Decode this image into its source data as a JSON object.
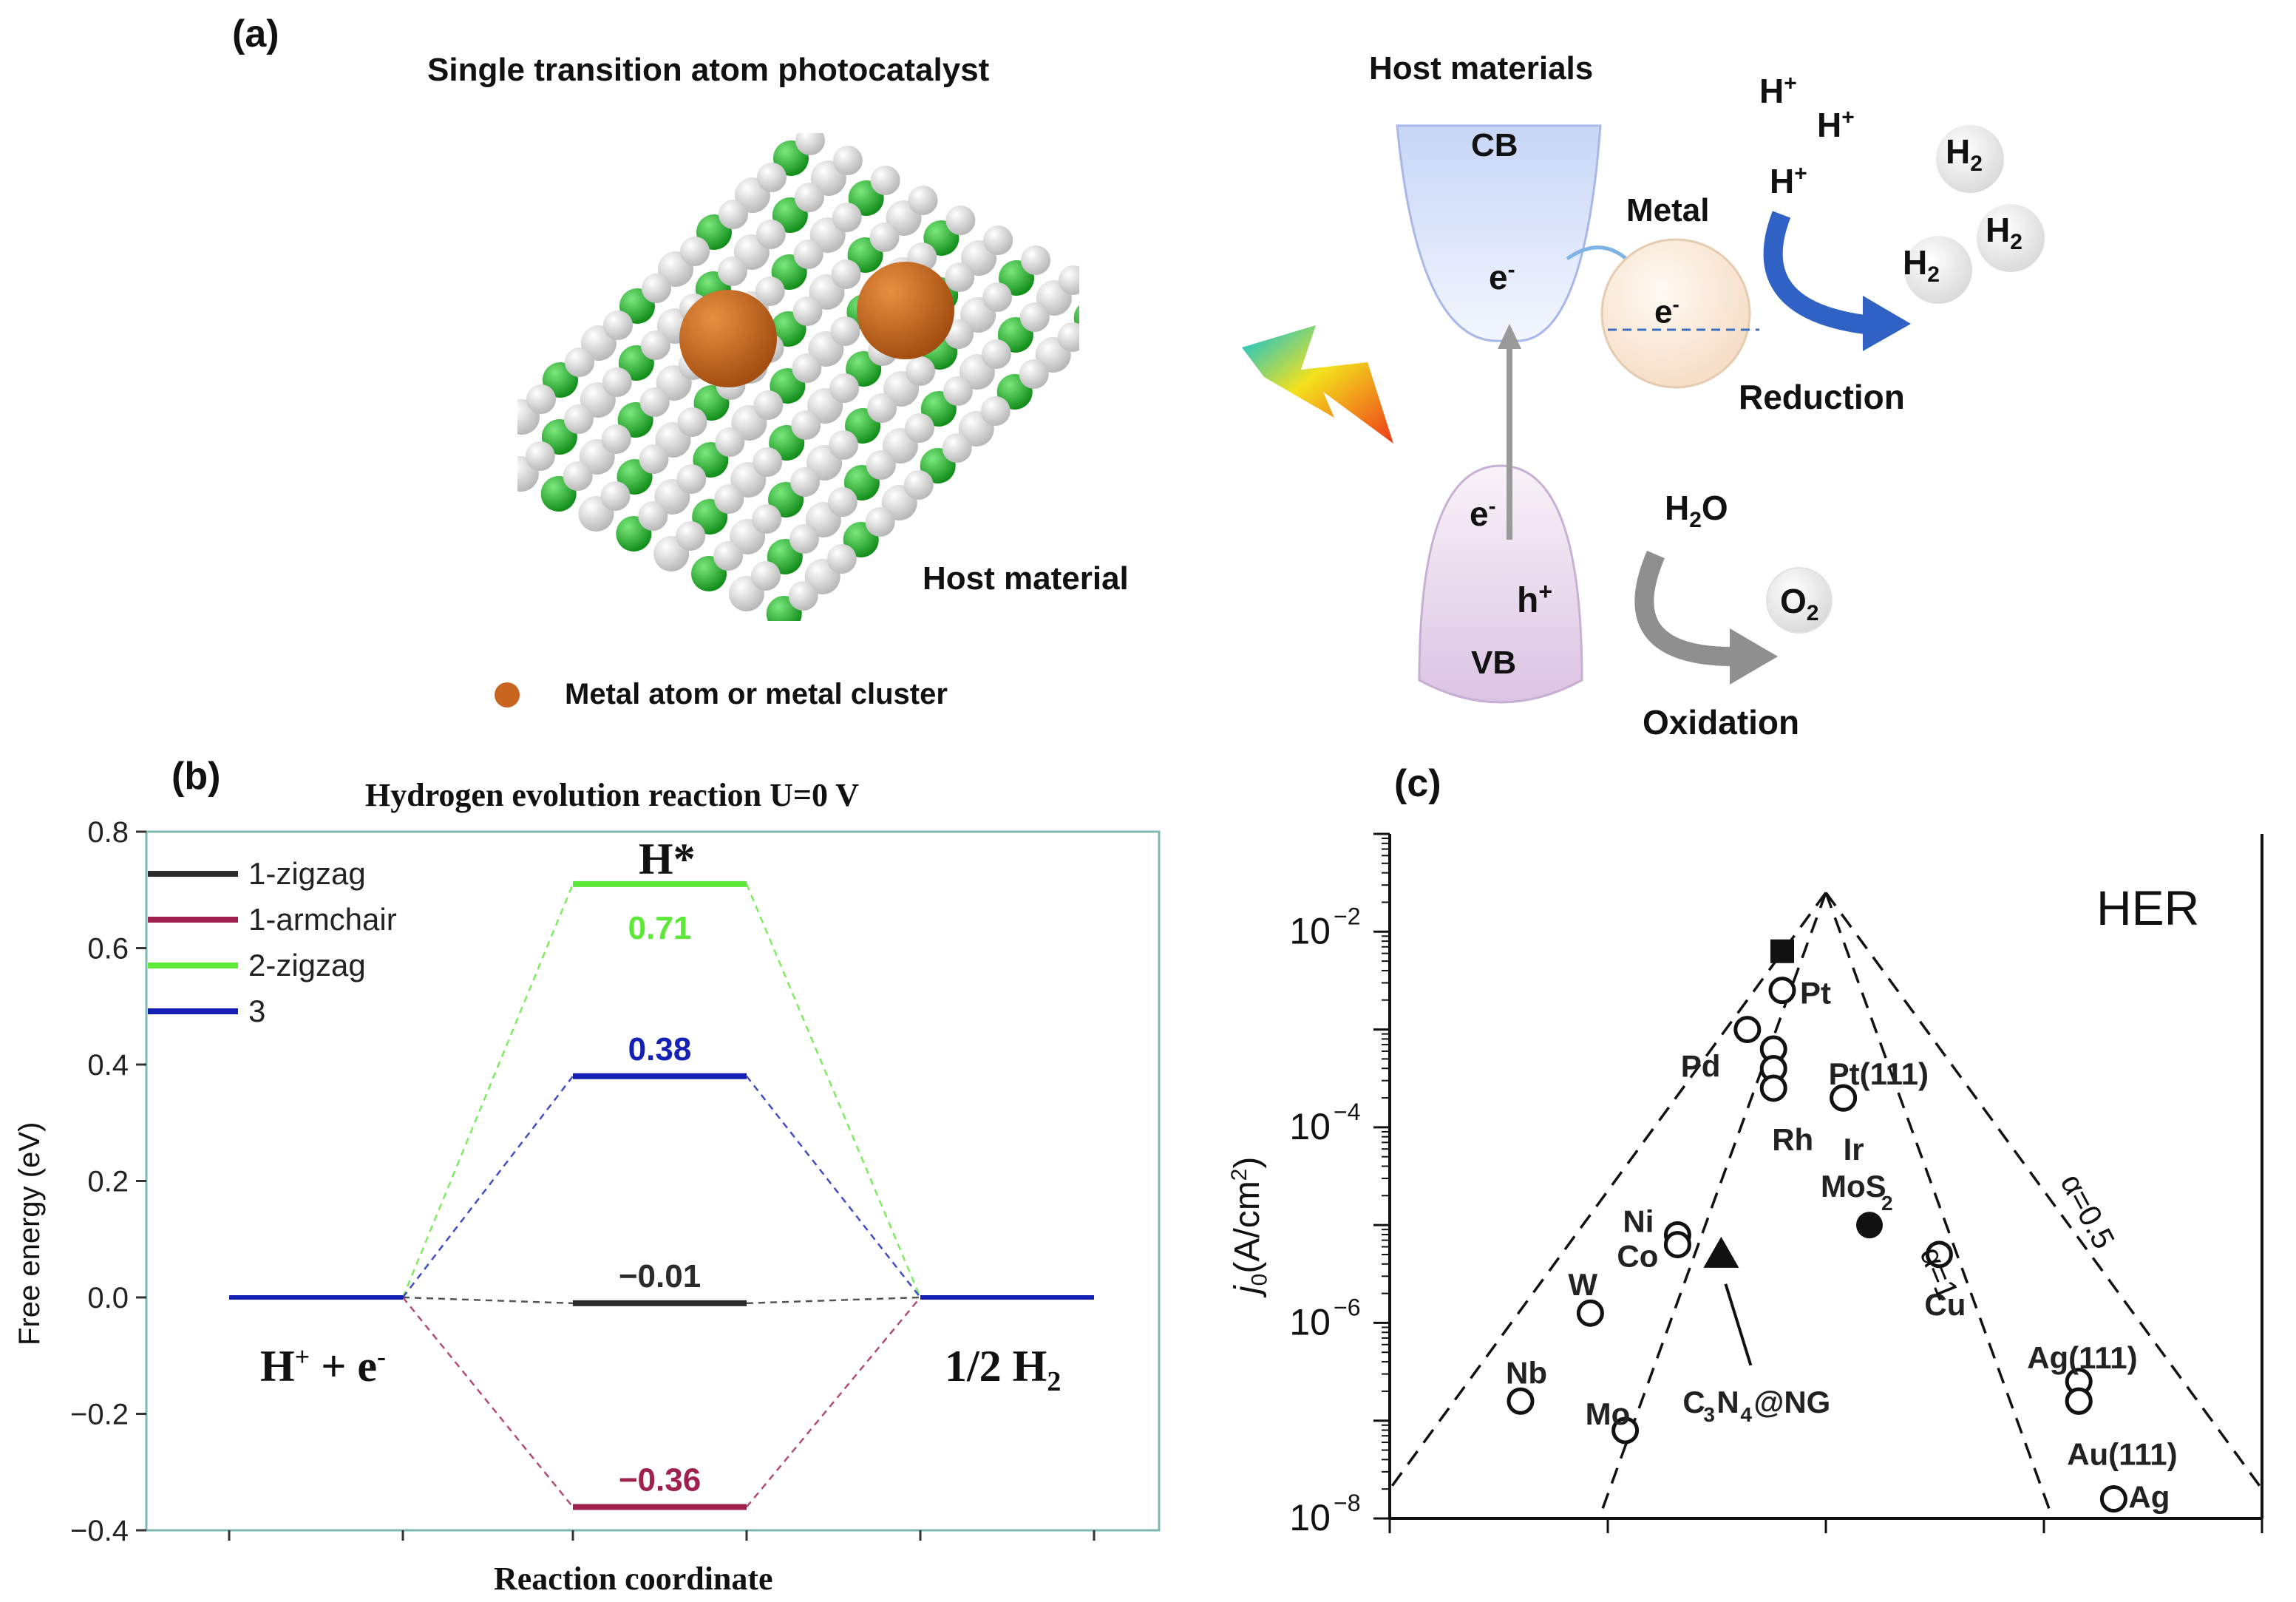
{
  "panel_a": {
    "letter": "(a)",
    "title": "Single transition atom photocatalyst",
    "host_material_label": "Host material",
    "legend_text": "Metal atom or metal cluster",
    "host_materials_title": "Host materials",
    "cb": "CB",
    "vb": "VB",
    "metal": "Metal",
    "electron": "e",
    "minus": "-",
    "hole": "h",
    "plus": "+",
    "h_symbol": "H",
    "h2": "H",
    "sub2": "2",
    "h2o": "H",
    "h2o_o": "O",
    "o2": "O",
    "reduction": "Reduction",
    "oxidation": "Oxidation",
    "colors": {
      "metal_atom": "#c8651f",
      "green_atom": "#22b02a",
      "white_atom": "#e4e4e4",
      "cb_fill": "#dfe8fb",
      "vb_fill": "#efe3f2",
      "reduction_arrow": "#2f62c4",
      "oxidation_arrow": "#909090"
    }
  },
  "chart_data": [
    {
      "type": "line",
      "panel": "(b)",
      "title": "Hydrogen evolution reaction U=0 V",
      "xlabel": "Reaction coordinate",
      "ylabel": "Free energy (eV)",
      "ylim": [
        -0.4,
        0.8
      ],
      "yticks": [
        "0.8",
        "0.6",
        "0.4",
        "0.2",
        "0.0",
        "−0.2",
        "−0.4"
      ],
      "ytick_values": [
        0.8,
        0.6,
        0.4,
        0.2,
        0.0,
        -0.2,
        -0.4
      ],
      "states": {
        "initial": "H",
        "initial_sup": "+",
        "initial_rest": " + e",
        "initial_sup2": "-",
        "middle": "H*",
        "final": "1/2 H",
        "final_sub": "2"
      },
      "series": [
        {
          "name": "1-zigzag",
          "color": "#2b2b2b",
          "values": [
            0.0,
            -0.01,
            0.0
          ],
          "label": "−0.01"
        },
        {
          "name": "1-armchair",
          "color": "#a0204e",
          "values": [
            0.0,
            -0.36,
            0.0
          ],
          "label": "−0.36"
        },
        {
          "name": "2-zigzag",
          "color": "#5ee83a",
          "values": [
            0.0,
            0.71,
            0.0
          ],
          "label": "0.71"
        },
        {
          "name": "3",
          "color": "#1521b5",
          "values": [
            0.0,
            0.38,
            0.0
          ],
          "label": "0.38"
        }
      ]
    },
    {
      "type": "scatter",
      "panel": "(c)",
      "title": "HER",
      "ylabel": "j",
      "ylabel_sub": "0",
      "ylabel_rest": "(A/cm",
      "ylabel_sup": "2",
      "ylabel_end": ")",
      "yscale": "log",
      "ylim_exp": [
        -8,
        -1
      ],
      "yticks": [
        {
          "base": "10",
          "exp": "−2",
          "value": -2
        },
        {
          "base": "10",
          "exp": "−4",
          "value": -4
        },
        {
          "base": "10",
          "exp": "−6",
          "value": -6
        },
        {
          "base": "10",
          "exp": "−8",
          "value": -8
        }
      ],
      "line_labels": [
        "α=1",
        "α=0.5"
      ],
      "points": [
        {
          "label": "Pt",
          "marker": "circle-open",
          "x": 0.45,
          "logj": -2.6
        },
        {
          "label": "",
          "marker": "square-filled",
          "x": 0.45,
          "logj": -2.2
        },
        {
          "label": "Pd",
          "marker": "circle-open",
          "x": 0.41,
          "logj": -3.0
        },
        {
          "label": "",
          "marker": "circle-open",
          "x": 0.44,
          "logj": -3.2
        },
        {
          "label": "",
          "marker": "circle-open",
          "x": 0.44,
          "logj": -3.4
        },
        {
          "label": "Rh",
          "marker": "circle-open",
          "x": 0.44,
          "logj": -3.6
        },
        {
          "label": "Pt(111)",
          "marker": "circle-open",
          "x": 0.52,
          "logj": -3.7
        },
        {
          "label": "Ir",
          "marker": "circle-open",
          "x": 0.52,
          "logj": -3.7
        },
        {
          "label": "MoS",
          "label_sub": "2",
          "marker": "circle-filled",
          "x": 0.55,
          "logj": -5.0
        },
        {
          "label": "Cu",
          "marker": "circle-open",
          "x": 0.63,
          "logj": -5.3
        },
        {
          "label": "Ni",
          "marker": "circle-open",
          "x": 0.33,
          "logj": -5.1
        },
        {
          "label": "Co",
          "marker": "circle-open",
          "x": 0.33,
          "logj": -5.2
        },
        {
          "label": "W",
          "marker": "circle-open",
          "x": 0.23,
          "logj": -5.9
        },
        {
          "label": "Nb",
          "marker": "circle-open",
          "x": 0.15,
          "logj": -6.8
        },
        {
          "label": "Mo",
          "marker": "circle-open",
          "x": 0.27,
          "logj": -7.1
        },
        {
          "label": "C",
          "label_sub1": "3",
          "label_mid": "N",
          "label_sub2": "4",
          "label_end": "@NG",
          "marker": "triangle-filled",
          "x": 0.38,
          "logj": -5.3
        },
        {
          "label": "Ag(111)",
          "marker": "circle-open",
          "x": 0.79,
          "logj": -6.6
        },
        {
          "label": "",
          "marker": "circle-open",
          "x": 0.79,
          "logj": -6.8
        },
        {
          "label": "Au(111)",
          "marker": "circle-open",
          "x": 0.79,
          "logj": -6.8
        },
        {
          "label": "Ag",
          "marker": "circle-open",
          "x": 0.83,
          "logj": -7.8
        }
      ]
    }
  ]
}
